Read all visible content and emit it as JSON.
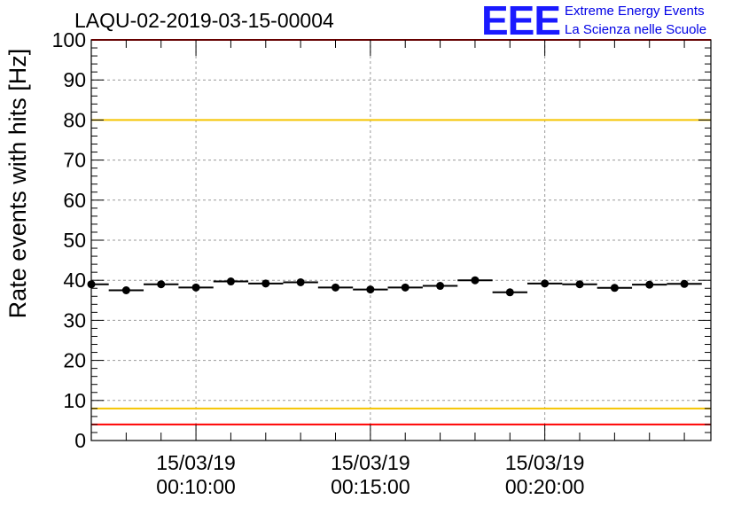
{
  "header": {
    "run_title": "LAQU-02-2019-03-15-00004",
    "logo_text": "EEE",
    "logo_line1": "Extreme Energy Events",
    "logo_line2": "La Scienza nelle Scuole"
  },
  "colors": {
    "upper_limit_line": "#ff0000",
    "warning_line": "#f5c400",
    "lower_limit_line": "#ff0000",
    "markers": "#000000",
    "grid": "#999999",
    "logo": "#1a1aff"
  },
  "chart_data": {
    "type": "scatter",
    "title": "LAQU-02-2019-03-15-00004",
    "xlabel": "",
    "ylabel": "Rate events with hits [Hz]",
    "ylim": [
      0,
      100
    ],
    "yticks": [
      0,
      10,
      20,
      30,
      40,
      50,
      60,
      70,
      80,
      90,
      100
    ],
    "xlim_minutes": [
      7.0,
      24.76
    ],
    "xticks": [
      {
        "minute": 10,
        "date": "15/03/19",
        "time": "00:10:00"
      },
      {
        "minute": 15,
        "date": "15/03/19",
        "time": "00:15:00"
      },
      {
        "minute": 20,
        "date": "15/03/19",
        "time": "00:20:00"
      }
    ],
    "grid": true,
    "bin_width_minutes": 1.0,
    "points": [
      {
        "minute": 7.0,
        "value": 39.0
      },
      {
        "minute": 8.0,
        "value": 37.5
      },
      {
        "minute": 9.0,
        "value": 39.0
      },
      {
        "minute": 10.0,
        "value": 38.2
      },
      {
        "minute": 11.0,
        "value": 39.7
      },
      {
        "minute": 12.0,
        "value": 39.2
      },
      {
        "minute": 13.0,
        "value": 39.5
      },
      {
        "minute": 14.0,
        "value": 38.2
      },
      {
        "minute": 15.0,
        "value": 37.7
      },
      {
        "minute": 16.0,
        "value": 38.2
      },
      {
        "minute": 17.0,
        "value": 38.6
      },
      {
        "minute": 18.0,
        "value": 40.0
      },
      {
        "minute": 19.0,
        "value": 37.0
      },
      {
        "minute": 20.0,
        "value": 39.2
      },
      {
        "minute": 21.0,
        "value": 39.0
      },
      {
        "minute": 22.0,
        "value": 38.1
      },
      {
        "minute": 23.0,
        "value": 38.9
      },
      {
        "minute": 24.0,
        "value": 39.1
      }
    ],
    "reference_lines": [
      {
        "value": 100,
        "color": "#ff0000"
      },
      {
        "value": 80,
        "color": "#f5c400"
      },
      {
        "value": 8,
        "color": "#f5c400"
      },
      {
        "value": 4,
        "color": "#ff0000"
      }
    ]
  }
}
